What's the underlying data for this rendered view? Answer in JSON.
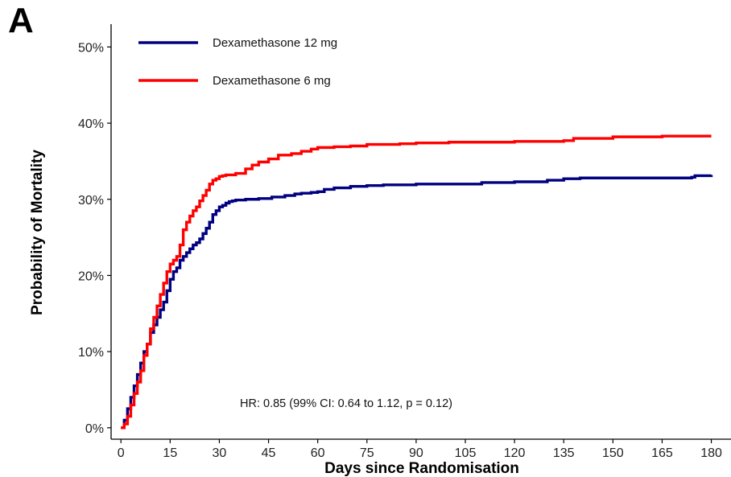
{
  "panel_label": "A",
  "chart_data": {
    "type": "line",
    "title": "",
    "xlabel": "Days since Randomisation",
    "ylabel": "Probability of Mortality",
    "xlim": [
      -3,
      186
    ],
    "ylim": [
      -1.5,
      53
    ],
    "x_ticks": [
      0,
      15,
      30,
      45,
      60,
      75,
      90,
      105,
      120,
      135,
      150,
      165,
      180
    ],
    "y_ticks": [
      0,
      10,
      20,
      30,
      40,
      50
    ],
    "y_tick_labels": [
      "0%",
      "10%",
      "20%",
      "30%",
      "40%",
      "50%"
    ],
    "grid": false,
    "legend_position": "top-left",
    "annotation": "HR: 0.85 (99% CI: 0.64 to 1.12, p = 0.12)",
    "series": [
      {
        "name": "Dexamethasone 12 mg",
        "color": "#000080",
        "x": [
          0,
          1,
          2,
          3,
          4,
          5,
          6,
          7,
          8,
          9,
          10,
          11,
          12,
          13,
          14,
          15,
          16,
          17,
          18,
          19,
          20,
          21,
          22,
          23,
          24,
          25,
          26,
          27,
          28,
          29,
          30,
          31,
          32,
          33,
          34,
          35,
          38,
          42,
          46,
          50,
          53,
          55,
          58,
          60,
          62,
          65,
          70,
          75,
          80,
          90,
          105,
          110,
          120,
          130,
          135,
          140,
          150,
          165,
          174,
          175,
          180
        ],
        "y": [
          0,
          1,
          2.5,
          4,
          5.5,
          7,
          8.5,
          10,
          11,
          12.5,
          13.5,
          14.5,
          15.5,
          16.5,
          18,
          19.5,
          20.5,
          21,
          22,
          22.5,
          23,
          23.5,
          24,
          24.3,
          24.8,
          25.5,
          26.2,
          27,
          28,
          28.5,
          29,
          29.2,
          29.5,
          29.7,
          29.8,
          29.9,
          30,
          30.1,
          30.3,
          30.5,
          30.7,
          30.8,
          30.9,
          31,
          31.3,
          31.5,
          31.7,
          31.8,
          31.9,
          32,
          32,
          32.2,
          32.3,
          32.5,
          32.7,
          32.8,
          32.8,
          32.8,
          32.9,
          33.1,
          33.2
        ]
      },
      {
        "name": "Dexamethasone 6 mg",
        "color": "#ff0000",
        "x": [
          0,
          1,
          2,
          3,
          4,
          5,
          6,
          7,
          8,
          9,
          10,
          11,
          12,
          13,
          14,
          15,
          16,
          17,
          18,
          19,
          20,
          21,
          22,
          23,
          24,
          25,
          26,
          27,
          28,
          29,
          30,
          31,
          32,
          35,
          38,
          40,
          42,
          45,
          48,
          52,
          55,
          58,
          60,
          65,
          70,
          75,
          85,
          90,
          100,
          105,
          110,
          120,
          135,
          138,
          150,
          165,
          180
        ],
        "y": [
          0,
          0.5,
          1.5,
          3,
          4.5,
          6,
          7.5,
          9.5,
          11,
          13,
          14.5,
          16,
          17.5,
          19,
          20.5,
          21.5,
          22,
          22.5,
          24,
          26,
          27,
          27.8,
          28.5,
          29,
          29.8,
          30.5,
          31.2,
          32,
          32.5,
          32.7,
          33,
          33.1,
          33.2,
          33.4,
          34,
          34.5,
          34.9,
          35.3,
          35.8,
          36,
          36.3,
          36.6,
          36.8,
          36.9,
          37,
          37.2,
          37.3,
          37.4,
          37.5,
          37.5,
          37.5,
          37.6,
          37.7,
          38,
          38.2,
          38.3,
          38.3
        ]
      }
    ]
  }
}
